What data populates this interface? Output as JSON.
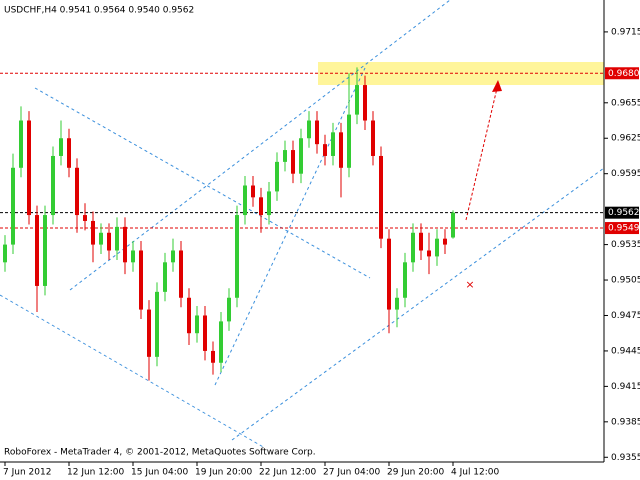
{
  "chart_data": {
    "type": "candlestick",
    "title": "USDCHF,H4  0.9541 0.9564 0.9540 0.9562",
    "footer": "RoboForex - MetaTrader 4, © 2001-2012, MetaQuotes Software Corp.",
    "categories": [
      "7 Jun 2012",
      null,
      null,
      null,
      null,
      null,
      null,
      null,
      "12 Jun 12:00",
      null,
      null,
      null,
      null,
      null,
      null,
      null,
      "15 Jun 04:00",
      null,
      null,
      null,
      null,
      null,
      null,
      null,
      "19 Jun 20:00",
      null,
      null,
      null,
      null,
      null,
      null,
      null,
      "22 Jun 12:00",
      null,
      null,
      null,
      null,
      null,
      null,
      null,
      "27 Jun 04:00",
      null,
      null,
      null,
      null,
      null,
      null,
      null,
      "29 Jun 20:00",
      null,
      null,
      null,
      null,
      null,
      null,
      null,
      "4 Jul 12:00"
    ],
    "open": [
      0.952,
      0.9535,
      0.96,
      0.964,
      0.956,
      0.95,
      0.956,
      0.961,
      0.9625,
      0.96,
      0.956,
      0.9555,
      0.9535,
      0.9545,
      0.953,
      0.955,
      0.952,
      0.953,
      0.948,
      0.944,
      0.9495,
      0.952,
      0.953,
      0.949,
      0.946,
      0.9475,
      0.9445,
      0.9435,
      0.947,
      0.949,
      0.956,
      0.9585,
      0.9575,
      0.956,
      0.958,
      0.9605,
      0.9615,
      0.9595,
      0.9625,
      0.964,
      0.962,
      0.961,
      0.963,
      0.96,
      0.9645,
      0.967,
      0.964,
      0.961,
      0.954,
      0.948,
      0.949,
      0.952,
      0.9545,
      0.953,
      0.9525,
      0.954,
      0.9541
    ],
    "high": [
      0.9543,
      0.9612,
      0.9652,
      0.9648,
      0.9568,
      0.9568,
      0.9618,
      0.964,
      0.9633,
      0.9608,
      0.957,
      0.9563,
      0.9553,
      0.9553,
      0.9558,
      0.9558,
      0.9538,
      0.9538,
      0.9488,
      0.9503,
      0.9528,
      0.954,
      0.9538,
      0.9498,
      0.9483,
      0.9483,
      0.9453,
      0.9478,
      0.9498,
      0.9568,
      0.9593,
      0.9593,
      0.9583,
      0.9588,
      0.9613,
      0.9623,
      0.9623,
      0.9633,
      0.9648,
      0.9648,
      0.9628,
      0.9638,
      0.9638,
      0.968,
      0.9685,
      0.9678,
      0.9648,
      0.9618,
      0.9548,
      0.9498,
      0.9528,
      0.9553,
      0.9553,
      0.9545,
      0.9548,
      0.9548,
      0.9564
    ],
    "low": [
      0.9512,
      0.9527,
      0.9592,
      0.9552,
      0.9478,
      0.9492,
      0.9552,
      0.9602,
      0.9592,
      0.9545,
      0.9547,
      0.952,
      0.9527,
      0.9522,
      0.9522,
      0.951,
      0.9512,
      0.9472,
      0.942,
      0.9432,
      0.9487,
      0.9512,
      0.9482,
      0.945,
      0.9452,
      0.9437,
      0.9425,
      0.9427,
      0.9462,
      0.9482,
      0.9552,
      0.9567,
      0.9545,
      0.9552,
      0.9572,
      0.9597,
      0.9587,
      0.9587,
      0.9617,
      0.9612,
      0.9602,
      0.9602,
      0.9575,
      0.9592,
      0.9637,
      0.9632,
      0.9602,
      0.9532,
      0.946,
      0.9465,
      0.9482,
      0.9512,
      0.9522,
      0.951,
      0.9517,
      0.9527,
      0.954
    ],
    "close": [
      0.9535,
      0.96,
      0.964,
      0.956,
      0.95,
      0.956,
      0.961,
      0.9625,
      0.96,
      0.956,
      0.9555,
      0.9535,
      0.9545,
      0.953,
      0.955,
      0.952,
      0.953,
      0.948,
      0.944,
      0.9495,
      0.952,
      0.953,
      0.949,
      0.946,
      0.9475,
      0.9445,
      0.9435,
      0.947,
      0.949,
      0.956,
      0.9585,
      0.9575,
      0.956,
      0.958,
      0.9605,
      0.9615,
      0.9595,
      0.9625,
      0.964,
      0.962,
      0.961,
      0.963,
      0.96,
      0.9645,
      0.967,
      0.964,
      0.961,
      0.954,
      0.948,
      0.949,
      0.952,
      0.9545,
      0.953,
      0.9525,
      0.954,
      0.9535,
      0.9562
    ],
    "up_color": "#33cc33",
    "down_color": "#e00000",
    "ylim": [
      0.9351,
      0.9742
    ],
    "yticks": [
      0.9715,
      0.9655,
      0.9625,
      0.9595,
      0.9535,
      0.9505,
      0.9475,
      0.9445,
      0.9415,
      0.9385,
      0.9355
    ],
    "price_labels": [
      {
        "value": 0.968,
        "label": "0.9680",
        "color": "#e00000"
      },
      {
        "value": 0.9562,
        "label": "0.9562",
        "color": "#000000"
      },
      {
        "value": 0.9549,
        "label": "0.9549",
        "color": "#e00000"
      }
    ],
    "grid": false
  }
}
